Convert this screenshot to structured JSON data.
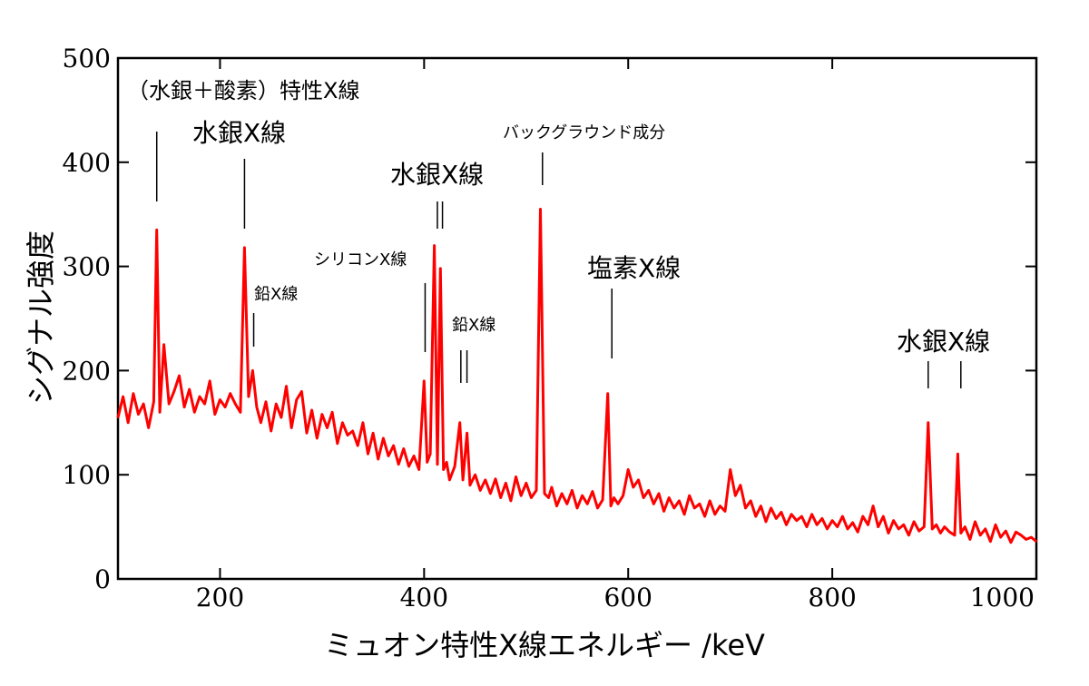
{
  "chart_data": {
    "type": "line",
    "xlabel": "ミュオン特性X線エネルギー /keV",
    "ylabel": "シグナル強度",
    "xlim": [
      100,
      1000
    ],
    "ylim": [
      0,
      500
    ],
    "x_ticks": [
      200,
      400,
      600,
      800,
      1000
    ],
    "y_ticks": [
      0,
      100,
      200,
      300,
      400,
      500
    ],
    "grid": false,
    "legend": "none",
    "series_color": "#ff0000",
    "series": [
      {
        "x": [
          100,
          105,
          110,
          115,
          120,
          125,
          130,
          135,
          138,
          141,
          145,
          150,
          155,
          160,
          165,
          170,
          175,
          180,
          185,
          190,
          195,
          200,
          205,
          210,
          215,
          220,
          224,
          228,
          232,
          236,
          240,
          245,
          250,
          255,
          260,
          265,
          270,
          275,
          280,
          285,
          290,
          295,
          300,
          305,
          310,
          315,
          320,
          325,
          330,
          335,
          340,
          345,
          350,
          355,
          360,
          365,
          370,
          375,
          380,
          385,
          390,
          395,
          400,
          403,
          406,
          410,
          413,
          416,
          419,
          422,
          425,
          430,
          435,
          438,
          442,
          445,
          450,
          455,
          460,
          465,
          470,
          475,
          480,
          485,
          490,
          495,
          500,
          505,
          510,
          514,
          518,
          522,
          525,
          530,
          535,
          540,
          545,
          550,
          555,
          560,
          565,
          570,
          575,
          580,
          583,
          586,
          590,
          595,
          600,
          605,
          610,
          615,
          620,
          625,
          630,
          635,
          640,
          645,
          650,
          655,
          660,
          665,
          670,
          675,
          680,
          685,
          690,
          695,
          700,
          705,
          710,
          715,
          720,
          725,
          730,
          735,
          740,
          745,
          750,
          755,
          760,
          765,
          770,
          775,
          780,
          785,
          790,
          795,
          800,
          805,
          810,
          815,
          820,
          825,
          830,
          835,
          840,
          845,
          850,
          855,
          860,
          865,
          870,
          875,
          880,
          885,
          890,
          894,
          898,
          902,
          906,
          910,
          915,
          920,
          923,
          926,
          930,
          935,
          940,
          945,
          950,
          955,
          960,
          965,
          970,
          975,
          980,
          985,
          990,
          995,
          1000
        ],
        "values": [
          155,
          175,
          150,
          178,
          158,
          168,
          145,
          170,
          335,
          160,
          225,
          168,
          180,
          195,
          165,
          182,
          160,
          175,
          168,
          190,
          158,
          172,
          165,
          178,
          168,
          160,
          318,
          175,
          200,
          165,
          150,
          170,
          142,
          168,
          155,
          185,
          145,
          172,
          180,
          140,
          162,
          135,
          158,
          145,
          160,
          130,
          150,
          138,
          142,
          128,
          150,
          120,
          140,
          115,
          135,
          118,
          128,
          110,
          125,
          108,
          118,
          105,
          190,
          112,
          120,
          320,
          110,
          298,
          105,
          112,
          95,
          108,
          150,
          95,
          140,
          90,
          100,
          85,
          95,
          82,
          96,
          78,
          92,
          75,
          98,
          80,
          92,
          78,
          85,
          355,
          82,
          78,
          88,
          70,
          82,
          72,
          85,
          68,
          80,
          72,
          84,
          68,
          76,
          178,
          70,
          78,
          72,
          80,
          105,
          88,
          95,
          78,
          85,
          72,
          82,
          65,
          78,
          68,
          75,
          62,
          80,
          68,
          72,
          60,
          75,
          62,
          70,
          65,
          105,
          80,
          90,
          68,
          75,
          60,
          70,
          55,
          68,
          58,
          64,
          52,
          62,
          56,
          60,
          50,
          62,
          52,
          58,
          48,
          56,
          50,
          60,
          48,
          54,
          45,
          60,
          52,
          70,
          50,
          60,
          44,
          56,
          48,
          52,
          42,
          55,
          46,
          50,
          150,
          48,
          52,
          44,
          50,
          45,
          42,
          120,
          44,
          50,
          38,
          55,
          42,
          48,
          36,
          52,
          40,
          46,
          35,
          45,
          42,
          38,
          40,
          36
        ]
      }
    ],
    "annotations": [
      {
        "text": "（水銀＋酸素）特性X線",
        "size": "md",
        "lines": [
          138
        ]
      },
      {
        "text": "水銀X線",
        "size": "lg",
        "lines": [
          224
        ]
      },
      {
        "text": "鉛X線",
        "size": "sm",
        "lines": [
          233
        ]
      },
      {
        "text": "シリコンX線",
        "size": "sm",
        "lines": [
          401
        ]
      },
      {
        "text": "水銀X線",
        "size": "lg",
        "lines": [
          413,
          418
        ]
      },
      {
        "text": "鉛X線",
        "size": "sm",
        "lines": [
          436,
          442
        ]
      },
      {
        "text": "バックグラウンド成分",
        "size": "sm",
        "lines": [
          516
        ]
      },
      {
        "text": "塩素X線",
        "size": "lg",
        "lines": [
          584
        ]
      },
      {
        "text": "水銀X線",
        "size": "lg",
        "lines": [
          894,
          926
        ]
      }
    ]
  }
}
